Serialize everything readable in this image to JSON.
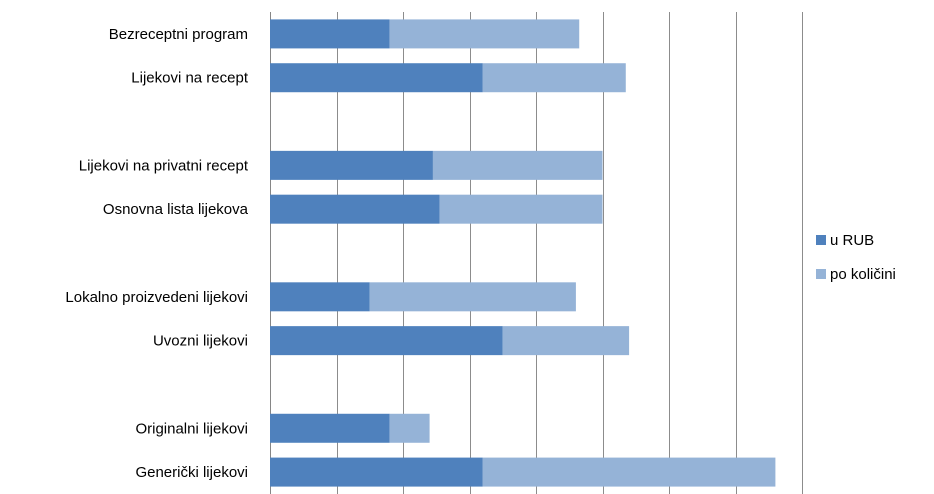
{
  "chart_data": {
    "type": "bar",
    "orientation": "horizontal",
    "stacked": true,
    "categories": [
      "Bezreceptni program",
      "Lijekovi na recept",
      "",
      "Lijekovi na privatni recept",
      "Osnovna lista lijekova",
      "",
      "Lokalno proizvedeni lijekovi",
      "Uvozni lijekovi",
      "",
      "Originalni lijekovi",
      "Generički lijekovi"
    ],
    "series": [
      {
        "name": "u RUB",
        "color": "#4F81BD",
        "values": [
          18,
          32,
          null,
          24.5,
          25.5,
          null,
          15,
          35,
          null,
          18,
          32
        ]
      },
      {
        "name": "po količini",
        "color": "#95B3D7",
        "values": [
          28.5,
          21.5,
          null,
          25.5,
          24.5,
          null,
          31,
          19,
          null,
          6,
          44
        ]
      }
    ],
    "xlim": [
      0,
      80
    ],
    "grid": true,
    "legend": "right",
    "title": "",
    "xlabel": "",
    "ylabel": ""
  }
}
